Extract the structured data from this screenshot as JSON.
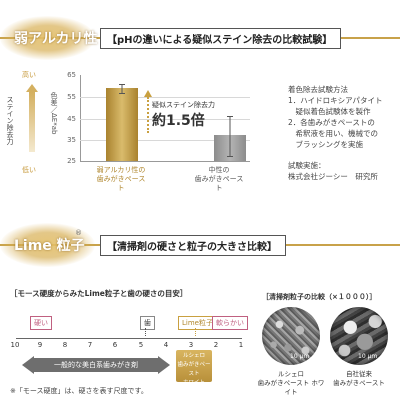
{
  "section1": {
    "tag": "弱アルカリ性",
    "title": "【pHの違いによる疑似ステイン除去の比較試験】",
    "side_label": "ステイン除去力",
    "high": "高い",
    "low": "低い",
    "ylabel": "色差／ΔE*ab",
    "arrow_label": "疑似ステイン除去力",
    "ratio": "約1.5倍",
    "method_title": "着色除去試験方法",
    "method_lines": [
      "1．ハイドロキシアパタイト",
      "　疑似着色試験体を製作",
      "2．各歯みがきペーストの",
      "　希釈液を用い、機械での",
      "　ブラッシングを実施"
    ],
    "org_title": "試験実施：",
    "org_name": "株式会社ジーシー　研究所"
  },
  "chart_data": {
    "type": "bar",
    "categories": [
      "弱アルカリ性の歯みがきペースト",
      "中性の歯みがきペースト"
    ],
    "category_lines": [
      [
        "弱アルカリ性の",
        "歯みがきペースト"
      ],
      [
        "中性の",
        "歯みがきペースト"
      ]
    ],
    "values": [
      59,
      37
    ],
    "errors": [
      2,
      9
    ],
    "ylabel": "色差／ΔE*ab",
    "yticks": [
      "65",
      "55",
      "45",
      "35",
      "25"
    ],
    "ylim": [
      25,
      65
    ],
    "colors": [
      "#b8963c",
      "#9c9c9c"
    ]
  },
  "section2": {
    "tag": "Lime 粒子",
    "reg": "®",
    "title": "【清掃剤の硬さと粒子の大きさ比較】",
    "scale_title": "［モース硬度からみたLime粒子と歯の硬さの目安］",
    "hard": "硬い",
    "soft": "軟らかい",
    "tooth": "歯",
    "lime": "Lime粒子",
    "ticks": [
      "10",
      "9",
      "8",
      "7",
      "6",
      "5",
      "4",
      "3",
      "2",
      "1"
    ],
    "general": "一般的な美白系歯みがき剤",
    "product_lines": [
      "ルシェロ",
      "歯みがきペースト",
      "ホワイト"
    ],
    "footnote": "※「モース硬度」は、硬さを表す尺度です。",
    "compare_title": "［清掃剤粒子の比較（×１０００）］",
    "photo1_lines": [
      "ルシェロ",
      "歯みがきペースト ホワイト"
    ],
    "photo2_lines": [
      "自社従来",
      "歯みがきペースト"
    ],
    "scale": "10 μm"
  }
}
